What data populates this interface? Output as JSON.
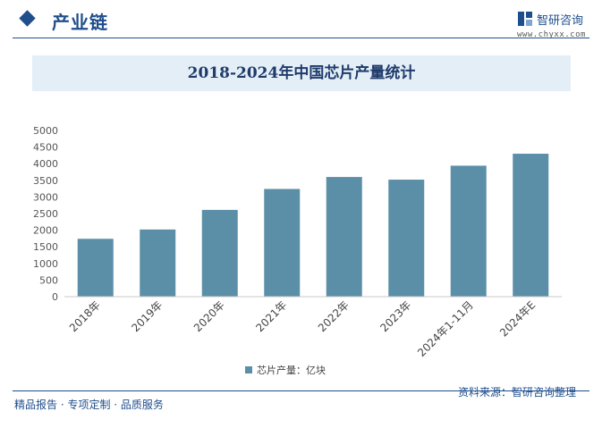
{
  "header": {
    "section_title": "产业链",
    "logo_name": "智研咨询",
    "logo_url": "www.chyxx.com"
  },
  "footer": {
    "left_text": "精品报告 · 专项定制 · 品质服务",
    "source_text": "资料来源：智研咨询整理"
  },
  "colors": {
    "bar": "#5b8fa8",
    "brand": "#1f4e8c",
    "title_band": "#e4eef7"
  },
  "chart_data": {
    "type": "bar",
    "title": "2018-2024年中国芯片产量统计",
    "categories": [
      "2018年",
      "2019年",
      "2020年",
      "2021年",
      "2022年",
      "2023年",
      "2024年1-11月",
      "2024年E"
    ],
    "series": [
      {
        "name": "芯片产量：亿块",
        "values": [
          1740,
          2020,
          2610,
          3240,
          3600,
          3520,
          3940,
          4300
        ]
      }
    ],
    "y_ticks": [
      "0",
      "500",
      "1000",
      "1500",
      "2000",
      "2500",
      "3000",
      "3500",
      "4000",
      "4500",
      "5000"
    ],
    "ylim": [
      0,
      5000
    ],
    "grid": false,
    "legend_position": "bottom"
  }
}
